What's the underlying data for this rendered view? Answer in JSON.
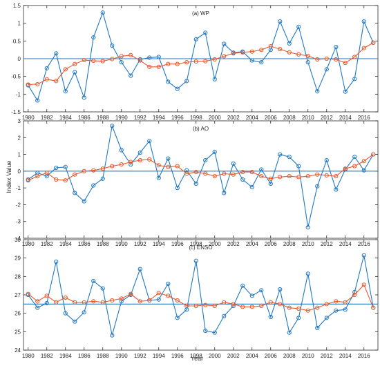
{
  "chart_data": {
    "type": "line",
    "xlabel": "Year",
    "ylabel": "Index Value",
    "colors": {
      "observed": "#1f77c4",
      "smoothed": "#e8572a",
      "reference": "#1f77c4"
    },
    "x": [
      1980,
      1981,
      1982,
      1983,
      1984,
      1985,
      1986,
      1987,
      1988,
      1989,
      1990,
      1991,
      1992,
      1993,
      1994,
      1995,
      1996,
      1997,
      1998,
      1999,
      2000,
      2001,
      2002,
      2003,
      2004,
      2005,
      2006,
      2007,
      2008,
      2009,
      2010,
      2011,
      2012,
      2013,
      2014,
      2015,
      2016,
      2017
    ],
    "x_ticks": [
      "1980",
      "1982",
      "1984",
      "1986",
      "1988",
      "1990",
      "1992",
      "1994",
      "1996",
      "1998",
      "2000",
      "2002",
      "2004",
      "2006",
      "2008",
      "2010",
      "2012",
      "2014",
      "2016"
    ],
    "panels": [
      {
        "title": "(a) WP",
        "ylim": [
          -1.5,
          1.5
        ],
        "y_ticks": [
          "-1.5",
          "-1",
          "-0.5",
          "0",
          "0.5",
          "1",
          "1.5"
        ],
        "reference": 0,
        "series": [
          {
            "values": [
              -0.75,
              -1.18,
              -0.27,
              0.15,
              -0.92,
              -0.38,
              -1.1,
              0.6,
              1.3,
              0.37,
              -0.1,
              -0.48,
              -0.02,
              0.03,
              0.05,
              -0.65,
              -0.85,
              -0.63,
              0.55,
              0.73,
              -0.58,
              0.42,
              0.17,
              0.2,
              -0.05,
              -0.1,
              0.25,
              1.05,
              0.43,
              0.9,
              -0.1,
              -0.92,
              -0.3,
              0.33,
              -0.93,
              -0.57,
              1.05,
              0.45
            ]
          },
          {
            "values": [
              -0.73,
              -0.72,
              -0.58,
              -0.63,
              -0.3,
              -0.15,
              -0.04,
              -0.06,
              -0.07,
              -0.01,
              0.07,
              0.1,
              -0.05,
              -0.23,
              -0.23,
              -0.15,
              -0.15,
              -0.1,
              -0.08,
              -0.07,
              -0.02,
              0.07,
              0.15,
              0.18,
              0.2,
              0.25,
              0.35,
              0.27,
              0.18,
              0.12,
              0.08,
              -0.02,
              0.0,
              -0.02,
              -0.12,
              0.05,
              0.3,
              0.45
            ]
          }
        ]
      },
      {
        "title": "(b) AO",
        "ylim": [
          -4,
          3
        ],
        "y_ticks": [
          "-4",
          "-3",
          "-2",
          "-1",
          "0",
          "1",
          "2",
          "3"
        ],
        "reference": 0,
        "series": [
          {
            "values": [
              -0.5,
              -0.1,
              -0.3,
              0.2,
              0.25,
              -1.3,
              -1.8,
              -0.85,
              -0.45,
              2.7,
              1.25,
              0.4,
              1.1,
              1.8,
              -0.4,
              0.75,
              -1.0,
              0.05,
              -0.75,
              0.65,
              1.15,
              -1.3,
              0.45,
              -0.5,
              -0.95,
              0.1,
              -0.75,
              1.0,
              0.85,
              0.3,
              -3.35,
              -0.9,
              0.65,
              -1.1,
              0.1,
              0.85,
              0.05,
              1.0
            ]
          },
          {
            "values": [
              -0.55,
              -0.3,
              -0.1,
              -0.5,
              -0.55,
              -0.2,
              0.0,
              0.05,
              0.15,
              0.3,
              0.4,
              0.55,
              0.65,
              0.7,
              0.35,
              0.25,
              0.3,
              -0.15,
              -0.05,
              -0.15,
              -0.3,
              -0.15,
              -0.2,
              -0.05,
              -0.05,
              -0.3,
              -0.45,
              -0.35,
              -0.3,
              -0.35,
              -0.3,
              -0.2,
              -0.25,
              -0.3,
              0.15,
              0.3,
              0.6,
              1.0
            ]
          }
        ]
      },
      {
        "title": "(c) ENSO",
        "ylim": [
          24,
          30
        ],
        "y_ticks": [
          "24",
          "25",
          "26",
          "27",
          "28",
          "29",
          "30"
        ],
        "reference": 26.5,
        "series": [
          {
            "values": [
              27.0,
              26.3,
              26.55,
              28.8,
              26.0,
              25.55,
              26.05,
              27.75,
              27.35,
              24.8,
              26.65,
              27.0,
              28.4,
              26.7,
              26.75,
              27.6,
              25.75,
              26.2,
              28.85,
              25.05,
              24.95,
              25.85,
              26.4,
              27.5,
              26.95,
              27.25,
              25.8,
              27.3,
              24.95,
              25.75,
              28.15,
              25.2,
              25.75,
              26.15,
              26.2,
              27.15,
              29.15,
              26.3
            ]
          },
          {
            "values": [
              27.05,
              26.65,
              26.95,
              26.6,
              26.85,
              26.6,
              26.6,
              26.65,
              26.6,
              26.7,
              26.8,
              27.05,
              26.65,
              26.7,
              27.1,
              26.95,
              26.7,
              26.4,
              26.4,
              26.45,
              26.4,
              26.6,
              26.5,
              26.35,
              26.35,
              26.4,
              26.6,
              26.5,
              26.3,
              26.25,
              26.15,
              26.3,
              26.5,
              26.65,
              26.6,
              27.0,
              27.55,
              26.3
            ]
          }
        ]
      }
    ]
  }
}
